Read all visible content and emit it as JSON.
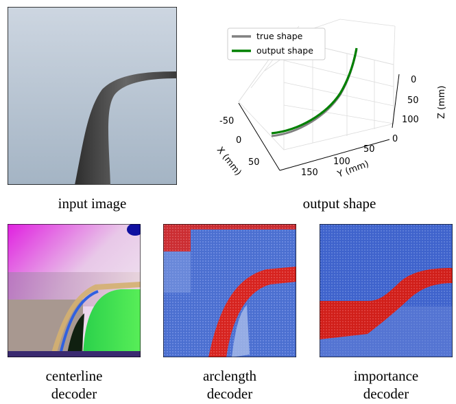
{
  "captions": {
    "input": "input image",
    "output": "output shape",
    "centerline": [
      "centerline",
      "decoder"
    ],
    "arclength": [
      "arclength",
      "decoder"
    ],
    "importance": [
      "importance",
      "decoder"
    ]
  },
  "plot3d": {
    "legend": [
      {
        "label": "true shape",
        "color": "#808080"
      },
      {
        "label": "output shape",
        "color": "#008000"
      }
    ],
    "x_axis": {
      "label": "X (mm)",
      "ticks": [
        "-50",
        "0",
        "50"
      ]
    },
    "y_axis": {
      "label": "Y (mm)",
      "ticks": [
        "150",
        "100",
        "50",
        "0"
      ]
    },
    "z_axis": {
      "label": "Z (mm)",
      "ticks": [
        "0",
        "50",
        "100"
      ]
    }
  },
  "colors": {
    "sky_top": "#c9d3df",
    "sky_bottom": "#a6b6c6",
    "tube": "#4a4a4a",
    "heat_blue": "#4b6fd0",
    "heat_red": "#d6231f"
  }
}
